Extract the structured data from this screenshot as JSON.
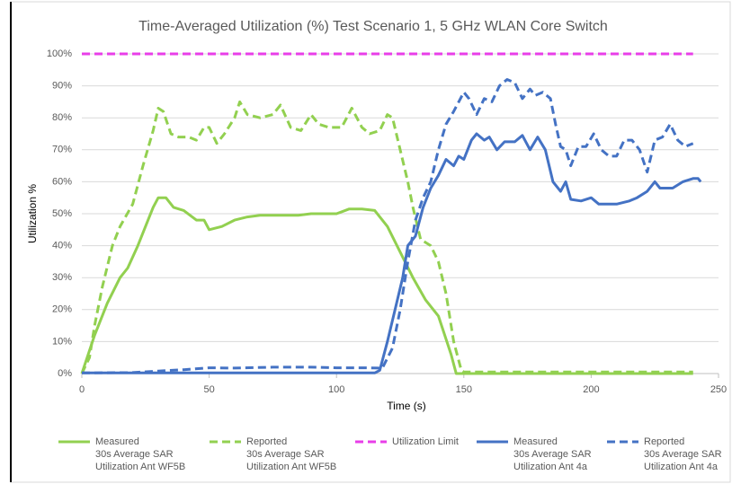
{
  "chart_data": {
    "type": "line",
    "title": "Time-Averaged Utilization (%) Test Scenario 1, 5 GHz WLAN Core Switch",
    "x_label": "Time (s)",
    "y_label": "Utilization %",
    "xlim": [
      0,
      250
    ],
    "xticks": [
      0,
      50,
      100,
      150,
      200,
      250
    ],
    "ylim": [
      0,
      100
    ],
    "yticks": [
      {
        "value": 0,
        "label": "0%"
      },
      {
        "value": 10,
        "label": "10%"
      },
      {
        "value": 20,
        "label": "20%"
      },
      {
        "value": 30,
        "label": "30%"
      },
      {
        "value": 40,
        "label": "40%"
      },
      {
        "value": 50,
        "label": "50%"
      },
      {
        "value": 60,
        "label": "60%"
      },
      {
        "value": 70,
        "label": "70%"
      },
      {
        "value": 80,
        "label": "80%"
      },
      {
        "value": 90,
        "label": "90%"
      },
      {
        "value": 100,
        "label": "100%"
      }
    ],
    "grid": true,
    "legend": "bottom",
    "series": [
      {
        "name": "Measured\n30s Average SAR\nUtilization Ant WF5B",
        "color": "#92d050",
        "dash": false,
        "x": [
          0,
          5,
          10,
          15,
          18,
          22,
          25,
          28,
          30,
          33,
          36,
          40,
          45,
          48,
          50,
          55,
          60,
          65,
          70,
          80,
          85,
          90,
          95,
          100,
          105,
          110,
          115,
          120,
          125,
          130,
          135,
          140,
          145,
          147,
          170,
          200,
          240
        ],
        "values": [
          0,
          12,
          22,
          30,
          33,
          40,
          46,
          52,
          55,
          55,
          52,
          51,
          48,
          48,
          45,
          46,
          48,
          49,
          49.5,
          49.5,
          49.5,
          50,
          50,
          50,
          51.5,
          51.5,
          51,
          46,
          38,
          30,
          23,
          18,
          6,
          0,
          0,
          0,
          0
        ]
      },
      {
        "name": "Reported\n30s Average SAR\nUtilization Ant WF5B",
        "color": "#92d050",
        "dash": true,
        "x": [
          0,
          3,
          5,
          8,
          12,
          15,
          20,
          24,
          28,
          30,
          32,
          35,
          38,
          42,
          45,
          48,
          50,
          53,
          56,
          60,
          62,
          65,
          70,
          75,
          78,
          82,
          86,
          90,
          93,
          97,
          102,
          106,
          110,
          113,
          117,
          120,
          122,
          125,
          128,
          130,
          133,
          137,
          140,
          143,
          146,
          149,
          150,
          200,
          240
        ],
        "values": [
          0,
          5,
          15,
          27,
          40,
          46,
          53,
          65,
          76,
          83,
          82,
          75,
          74,
          74,
          73,
          77,
          77,
          72,
          75,
          80,
          85,
          81,
          80,
          81,
          84,
          77,
          76,
          81,
          78,
          77,
          77,
          83,
          77,
          75,
          76,
          81,
          80,
          70,
          60,
          52,
          42,
          40,
          35,
          25,
          10,
          1,
          0.5,
          0.5,
          0.5
        ]
      },
      {
        "name": "Utilization Limit",
        "color": "#e83ee8",
        "dash": true,
        "x": [
          0,
          240
        ],
        "values": [
          100,
          100
        ]
      },
      {
        "name": "Measured\n30s Average SAR\nUtilization Ant 4a",
        "color": "#4472c4",
        "dash": false,
        "x": [
          0,
          50,
          100,
          115,
          117,
          120,
          123,
          126,
          128,
          131,
          134,
          137,
          140,
          143,
          146,
          148,
          150,
          153,
          155,
          158,
          160,
          163,
          166,
          170,
          173,
          176,
          179,
          182,
          185,
          188,
          190,
          192,
          196,
          200,
          203,
          210,
          215,
          218,
          222,
          225,
          227,
          232,
          236,
          240,
          242,
          243
        ],
        "values": [
          0.2,
          0.2,
          0.2,
          0.2,
          1,
          10,
          20,
          30,
          40,
          43,
          52,
          58,
          62,
          67,
          65,
          68,
          67,
          73,
          75,
          73,
          74,
          70,
          72.5,
          72.5,
          74.5,
          70,
          74,
          70,
          60,
          57,
          60,
          54.5,
          54,
          55,
          53,
          53,
          54,
          55,
          57,
          60,
          58,
          58,
          60,
          61,
          61,
          60
        ]
      },
      {
        "name": "Reported\n30s Average SAR\nUtilization Ant 4a",
        "color": "#4472c4",
        "dash": true,
        "x": [
          0,
          20,
          30,
          40,
          50,
          60,
          75,
          90,
          100,
          110,
          118,
          122,
          125,
          128,
          131,
          134,
          137,
          140,
          143,
          146,
          150,
          152,
          155,
          158,
          161,
          164,
          167,
          170,
          173,
          176,
          178,
          181,
          184,
          186,
          188,
          190,
          192,
          195,
          198,
          201,
          204,
          207,
          210,
          213,
          216,
          219,
          222,
          225,
          228,
          231,
          234,
          237,
          240
        ],
        "values": [
          0.2,
          0.3,
          0.8,
          1.2,
          1.8,
          1.7,
          2,
          2,
          1.8,
          1.8,
          1.7,
          8,
          20,
          35,
          48,
          55,
          60,
          70,
          78,
          82,
          88,
          86,
          81,
          86,
          85,
          90,
          92,
          91,
          86,
          89,
          87,
          88,
          86,
          78,
          71,
          70,
          65,
          71,
          71,
          75,
          70,
          68,
          68,
          73,
          73,
          70,
          63,
          73,
          74,
          78,
          73,
          71,
          72
        ]
      }
    ]
  }
}
